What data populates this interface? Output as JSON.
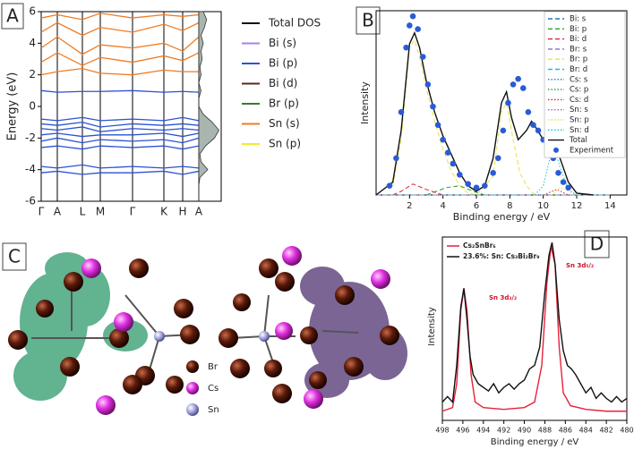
{
  "panel_labels": [
    "A",
    "B",
    "C",
    "D"
  ],
  "structure_legend": [
    "Br",
    "Cs",
    "Sn"
  ],
  "chart_data": [
    {
      "type": "line",
      "ylabel": "Energy (eV)",
      "ylim": [
        -6,
        6
      ],
      "yticks": [
        -6,
        -4,
        -2,
        0,
        2,
        4,
        6
      ],
      "categories": [
        "Γ",
        "A",
        "L",
        "M",
        "Γ",
        "K",
        "H",
        "A"
      ],
      "legend": [
        {
          "name": "Total DOS",
          "color": "#111111"
        },
        {
          "name": "Bi (s)",
          "color": "#b07ee8"
        },
        {
          "name": "Bi (p)",
          "color": "#2a52d6"
        },
        {
          "name": "Bi (d)",
          "color": "#5a2a1a"
        },
        {
          "name": "Br (p)",
          "color": "#3d7a2a"
        },
        {
          "name": "Sn (s)",
          "color": "#f07b22"
        },
        {
          "name": "Sn (p)",
          "color": "#f2ea2a"
        }
      ],
      "bands": [
        {
          "color": "#f07b22",
          "values": [
            5.6,
            5.8,
            5.5,
            5.9,
            5.6,
            5.8,
            5.7,
            5.8
          ]
        },
        {
          "color": "#f07b22",
          "values": [
            4.7,
            5.3,
            4.5,
            5.0,
            4.7,
            5.2,
            4.8,
            5.3
          ]
        },
        {
          "color": "#f07b22",
          "values": [
            3.7,
            4.4,
            3.3,
            3.9,
            3.7,
            4.0,
            3.5,
            4.4
          ]
        },
        {
          "color": "#f07b22",
          "values": [
            2.8,
            3.4,
            2.6,
            3.1,
            2.8,
            3.2,
            2.9,
            3.4
          ]
        },
        {
          "color": "#f07b22",
          "values": [
            2.0,
            2.2,
            2.4,
            2.1,
            2.0,
            2.3,
            2.2,
            2.2
          ]
        },
        {
          "color": "#2a52d6",
          "values": [
            1.0,
            0.9,
            0.95,
            0.95,
            1.0,
            0.9,
            0.95,
            0.9
          ]
        },
        {
          "color": "#2a52d6",
          "values": [
            -0.8,
            -0.9,
            -0.7,
            -0.9,
            -0.8,
            -0.9,
            -0.7,
            -0.9
          ]
        },
        {
          "color": "#2a52d6",
          "values": [
            -1.1,
            -1.2,
            -1.0,
            -1.3,
            -1.1,
            -1.2,
            -1.1,
            -1.2
          ]
        },
        {
          "color": "#2a52d6",
          "values": [
            -1.4,
            -1.5,
            -1.3,
            -1.6,
            -1.4,
            -1.5,
            -1.4,
            -1.5
          ]
        },
        {
          "color": "#2a52d6",
          "values": [
            -1.8,
            -1.7,
            -1.9,
            -1.8,
            -1.8,
            -1.7,
            -1.9,
            -1.7
          ]
        },
        {
          "color": "#2a52d6",
          "values": [
            -2.2,
            -2.0,
            -2.3,
            -2.1,
            -2.2,
            -2.1,
            -2.3,
            -2.0
          ]
        },
        {
          "color": "#2a52d6",
          "values": [
            -2.6,
            -2.5,
            -2.7,
            -2.5,
            -2.6,
            -2.5,
            -2.7,
            -2.5
          ]
        },
        {
          "color": "#2a52d6",
          "values": [
            -3.8,
            -3.9,
            -3.7,
            -3.9,
            -3.8,
            -3.9,
            -3.8,
            -3.9
          ]
        },
        {
          "color": "#2a52d6",
          "values": [
            -4.2,
            -4.1,
            -4.3,
            -4.2,
            -4.2,
            -4.1,
            -4.3,
            -4.1
          ]
        }
      ],
      "dos": {
        "color": "#a9b6b0",
        "energy": [
          -6,
          -5.5,
          -5,
          -4.5,
          -4,
          -3.5,
          -3,
          -2.5,
          -2,
          -1.5,
          -1,
          -0.5,
          0,
          0.5,
          1,
          1.5,
          2,
          2.5,
          3,
          3.5,
          4,
          4.5,
          5,
          5.5,
          6
        ],
        "values": [
          0,
          0,
          0,
          0.05,
          0.4,
          0.1,
          0.05,
          0.3,
          0.7,
          0.9,
          0.6,
          0.2,
          0,
          0,
          0.1,
          0,
          0.1,
          0.05,
          0.15,
          0.1,
          0.2,
          0.1,
          0.25,
          0.35,
          0.2
        ]
      }
    },
    {
      "type": "line",
      "xlabel": "Binding energy / eV",
      "ylabel": "Intensity",
      "xlim": [
        0,
        15
      ],
      "xticks": [
        2,
        4,
        6,
        8,
        10,
        12,
        14
      ],
      "ylim": [
        0,
        1
      ],
      "series": [
        {
          "name": "Bi: s",
          "color": "#1f77b4",
          "dash": "dashed",
          "x": [
            0,
            14
          ],
          "values": [
            0,
            0
          ]
        },
        {
          "name": "Bi: p",
          "color": "#2ca02c",
          "dash": "dashed",
          "x": [
            3,
            4.2,
            5,
            5.8,
            6.5
          ],
          "values": [
            0,
            0.04,
            0.05,
            0.02,
            0
          ]
        },
        {
          "name": "Bi: d",
          "color": "#d62728",
          "dash": "dashed",
          "x": [
            1,
            1.5,
            2.2,
            3,
            4
          ],
          "values": [
            0,
            0.02,
            0.06,
            0.03,
            0
          ]
        },
        {
          "name": "Br: s",
          "color": "#9467bd",
          "dash": "dashed",
          "x": [
            0,
            14
          ],
          "values": [
            0,
            0
          ]
        },
        {
          "name": "Br: p",
          "color": "#e8e04a",
          "dash": "dashed",
          "x": [
            1,
            1.5,
            2,
            2.3,
            2.6,
            3,
            3.5,
            4,
            4.5,
            5,
            5.5,
            6,
            7,
            7.5,
            7.8,
            8.2,
            8.6,
            9,
            9.5
          ],
          "values": [
            0.05,
            0.3,
            0.8,
            0.84,
            0.75,
            0.58,
            0.4,
            0.25,
            0.13,
            0.05,
            0.01,
            0,
            0.1,
            0.45,
            0.5,
            0.3,
            0.12,
            0.05,
            0
          ]
        },
        {
          "name": "Br: d",
          "color": "#17becf",
          "dash": "dashed",
          "x": [
            0,
            14
          ],
          "values": [
            0,
            0
          ]
        },
        {
          "name": "Cs: s",
          "color": "#1f77b4",
          "dash": "dotted",
          "x": [
            0,
            14
          ],
          "values": [
            0,
            0
          ]
        },
        {
          "name": "Cs: p",
          "color": "#2ca02c",
          "dash": "dotted",
          "x": [
            0,
            14
          ],
          "values": [
            0,
            0
          ]
        },
        {
          "name": "Cs: d",
          "color": "#d62728",
          "dash": "dotted",
          "x": [
            10,
            10.8,
            11.5
          ],
          "values": [
            0,
            0.03,
            0
          ]
        },
        {
          "name": "Sn: s",
          "color": "#9467bd",
          "dash": "dotted",
          "x": [
            0,
            14
          ],
          "values": [
            0,
            0
          ]
        },
        {
          "name": "Sn: p",
          "color": "#e8e04a",
          "dash": "dotted",
          "x": [
            10.5,
            11,
            11.5,
            12
          ],
          "values": [
            0,
            0.04,
            0.02,
            0
          ]
        },
        {
          "name": "Sn: d",
          "color": "#17becf",
          "dash": "dotted",
          "x": [
            9.5,
            10,
            10.4,
            10.7,
            11,
            11.5,
            12
          ],
          "values": [
            0,
            0.05,
            0.2,
            0.25,
            0.15,
            0.03,
            0
          ]
        },
        {
          "name": "Total",
          "color": "#111111",
          "dash": "solid",
          "x": [
            0,
            1,
            1.5,
            2,
            2.3,
            2.6,
            3,
            3.5,
            4,
            4.5,
            5,
            5.5,
            6,
            6.5,
            7,
            7.5,
            7.8,
            8.1,
            8.5,
            9,
            9.3,
            9.6,
            10,
            10.5,
            11,
            11.5,
            12,
            13
          ],
          "values": [
            0,
            0.07,
            0.35,
            0.82,
            0.88,
            0.8,
            0.62,
            0.45,
            0.32,
            0.22,
            0.12,
            0.05,
            0.02,
            0.05,
            0.2,
            0.5,
            0.56,
            0.42,
            0.3,
            0.35,
            0.4,
            0.36,
            0.3,
            0.26,
            0.2,
            0.07,
            0.01,
            0
          ]
        },
        {
          "name": "Experiment",
          "color": "#2a5bd7",
          "dash": "markers",
          "x": [
            0.8,
            1.2,
            1.5,
            1.8,
            2.0,
            2.2,
            2.5,
            2.8,
            3.1,
            3.4,
            3.7,
            4.0,
            4.3,
            4.6,
            5.0,
            5.5,
            6.0,
            6.5,
            7.0,
            7.3,
            7.6,
            7.9,
            8.2,
            8.5,
            8.8,
            9.1,
            9.4,
            9.7,
            10.0,
            10.3,
            10.6,
            10.9,
            11.2,
            11.5
          ],
          "values": [
            0.05,
            0.2,
            0.45,
            0.8,
            0.92,
            0.97,
            0.9,
            0.75,
            0.6,
            0.48,
            0.38,
            0.3,
            0.23,
            0.17,
            0.11,
            0.06,
            0.04,
            0.05,
            0.12,
            0.2,
            0.35,
            0.5,
            0.6,
            0.63,
            0.58,
            0.45,
            0.38,
            0.35,
            0.3,
            0.27,
            0.2,
            0.12,
            0.07,
            0.04
          ]
        }
      ]
    },
    {
      "type": "line",
      "xlabel": "Binding energy / eV",
      "ylabel": "Intensity",
      "xlim": [
        498,
        480
      ],
      "xticks": [
        498,
        496,
        494,
        492,
        490,
        488,
        486,
        484,
        482,
        480
      ],
      "ylim": [
        0,
        1
      ],
      "annotations": [
        "Sn 3d₅/₂",
        "Sn 3d₃/₂"
      ],
      "series": [
        {
          "name": "Cs₂SnBr₆",
          "color": "#e8203a",
          "x": [
            498,
            497,
            496.6,
            496.2,
            495.9,
            495.6,
            495.2,
            494.8,
            494,
            492,
            490,
            489,
            488.3,
            487.8,
            487.4,
            487,
            486.6,
            486.2,
            485.5,
            484,
            482,
            480
          ],
          "values": [
            0.05,
            0.07,
            0.2,
            0.6,
            0.72,
            0.6,
            0.25,
            0.1,
            0.07,
            0.06,
            0.07,
            0.1,
            0.3,
            0.75,
            0.95,
            0.85,
            0.4,
            0.15,
            0.08,
            0.06,
            0.05,
            0.05
          ]
        },
        {
          "name": "23.6%: Sn: Cs₃Bi₂Br₉",
          "color": "#111111",
          "x": [
            498,
            497.5,
            497,
            496.6,
            496.2,
            495.9,
            495.6,
            495.3,
            495,
            494.5,
            494,
            493.5,
            493,
            492.5,
            492,
            491.5,
            491,
            490.5,
            490,
            489.5,
            489,
            488.5,
            488,
            487.6,
            487.3,
            487,
            486.6,
            486.2,
            485.8,
            485.4,
            485,
            484.5,
            484,
            483.5,
            483,
            482.5,
            482,
            481.5,
            481,
            480.5,
            480
          ],
          "values": [
            0.1,
            0.13,
            0.1,
            0.3,
            0.62,
            0.72,
            0.55,
            0.35,
            0.25,
            0.2,
            0.18,
            0.16,
            0.2,
            0.15,
            0.18,
            0.2,
            0.17,
            0.2,
            0.22,
            0.28,
            0.3,
            0.4,
            0.7,
            0.9,
            0.97,
            0.85,
            0.55,
            0.38,
            0.3,
            0.28,
            0.25,
            0.2,
            0.15,
            0.18,
            0.12,
            0.15,
            0.12,
            0.1,
            0.13,
            0.1,
            0.12
          ]
        }
      ]
    }
  ]
}
